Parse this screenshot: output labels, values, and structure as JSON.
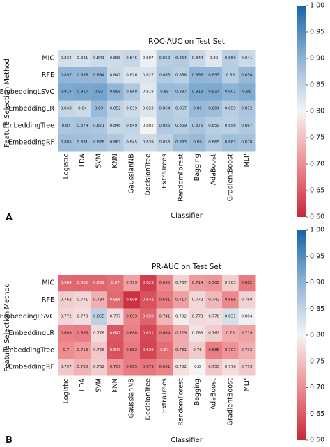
{
  "colormap": {
    "low": "#c8283a",
    "mid": "#f4f4f4",
    "high": "#1665a8"
  },
  "chart_data": [
    {
      "type": "heatmap",
      "title": "ROC-AUC on Test Set",
      "panel_letter": "A",
      "xlabel": "Classifier",
      "ylabel": "Feature Selection Method",
      "x_labels": [
        "Logistic",
        "LDA",
        "SVM",
        "KNN",
        "GaussianNB",
        "DecisionTree",
        "ExtraTrees",
        "RandomForest",
        "Bagging",
        "AdaBoost",
        "GradientBoost",
        "MLP"
      ],
      "y_labels": [
        "MIC",
        "RFE",
        "EmbeddingLSVC",
        "EmbeddingLR",
        "EmbeddingTree",
        "EmbeddingRF"
      ],
      "values": [
        [
          0.834,
          0.831,
          0.841,
          0.838,
          0.845,
          0.807,
          0.859,
          0.864,
          0.844,
          0.82,
          0.859,
          0.841
        ],
        [
          0.897,
          0.895,
          0.894,
          0.842,
          0.826,
          0.827,
          0.865,
          0.858,
          0.898,
          0.895,
          0.86,
          0.894
        ],
        [
          0.914,
          0.917,
          0.92,
          0.898,
          0.868,
          0.818,
          0.89,
          0.887,
          0.913,
          0.914,
          0.901,
          0.91
        ],
        [
          0.848,
          0.84,
          0.89,
          0.852,
          0.839,
          0.823,
          0.864,
          0.857,
          0.89,
          0.884,
          0.859,
          0.872
        ],
        [
          0.87,
          0.874,
          0.871,
          0.846,
          0.849,
          0.802,
          0.865,
          0.859,
          0.875,
          0.859,
          0.856,
          0.867
        ],
        [
          0.885,
          0.881,
          0.878,
          0.867,
          0.845,
          0.839,
          0.853,
          0.883,
          0.89,
          0.865,
          0.883,
          0.878
        ]
      ],
      "colorbar": {
        "min": 0.6,
        "max": 1.0,
        "ticks": [
          "0.60",
          "0.65",
          "0.70",
          "0.75",
          "0.80",
          "0.85",
          "0.90",
          "0.95",
          "1.00"
        ]
      }
    },
    {
      "type": "heatmap",
      "title": "PR-AUC on Test Set",
      "panel_letter": "B",
      "xlabel": "Classifier",
      "ylabel": "Feature Selection Method",
      "x_labels": [
        "Logistic",
        "LDA",
        "SVM",
        "KNN",
        "GaussianNB",
        "DecisionTree",
        "ExtraTrees",
        "RandomForest",
        "Bagging",
        "AdaBoost",
        "GradientBoost",
        "MLP"
      ],
      "y_labels": [
        "MIC",
        "RFE",
        "EmbeddingLSVC",
        "EmbeddingLR",
        "EmbeddingTree",
        "EmbeddingRF"
      ],
      "values": [
        [
          0.664,
          0.662,
          0.662,
          0.67,
          0.719,
          0.623,
          0.695,
          0.767,
          0.714,
          0.708,
          0.763,
          0.682
        ],
        [
          0.762,
          0.771,
          0.734,
          0.666,
          0.609,
          0.642,
          0.681,
          0.717,
          0.772,
          0.742,
          0.696,
          0.768
        ],
        [
          0.772,
          0.778,
          0.855,
          0.777,
          0.693,
          0.658,
          0.741,
          0.792,
          0.773,
          0.778,
          0.831,
          0.804
        ],
        [
          0.689,
          0.685,
          0.776,
          0.647,
          0.688,
          0.631,
          0.684,
          0.729,
          0.783,
          0.762,
          0.73,
          0.719
        ],
        [
          0.7,
          0.713,
          0.756,
          0.643,
          0.682,
          0.629,
          0.67,
          0.731,
          0.76,
          0.685,
          0.707,
          0.733
        ],
        [
          0.757,
          0.738,
          0.762,
          0.709,
          0.685,
          0.679,
          0.691,
          0.782,
          0.8,
          0.755,
          0.778,
          0.759
        ]
      ],
      "colorbar": {
        "min": 0.6,
        "max": 1.0,
        "ticks": [
          "0.60",
          "0.65",
          "0.70",
          "0.75",
          "0.80",
          "0.85",
          "0.90",
          "0.95",
          "1.00"
        ]
      }
    }
  ]
}
